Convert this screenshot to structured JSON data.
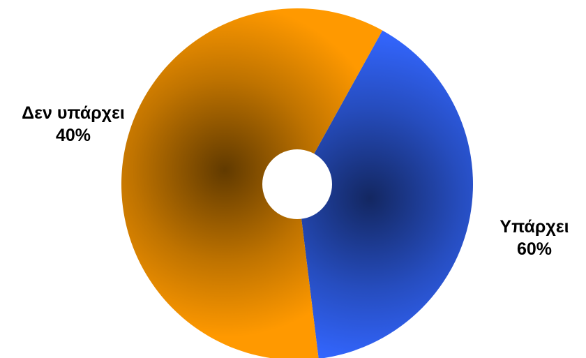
{
  "chart_data": {
    "type": "pie",
    "donut": true,
    "slices": [
      {
        "label": "Δεν υπάρχει",
        "value": 40,
        "display_value": "40%",
        "color": "#3366ff"
      },
      {
        "label": "Υπάρχει",
        "value": 60,
        "display_value": "60%",
        "color": "#ff9900"
      }
    ],
    "title": "",
    "legend": "none"
  }
}
